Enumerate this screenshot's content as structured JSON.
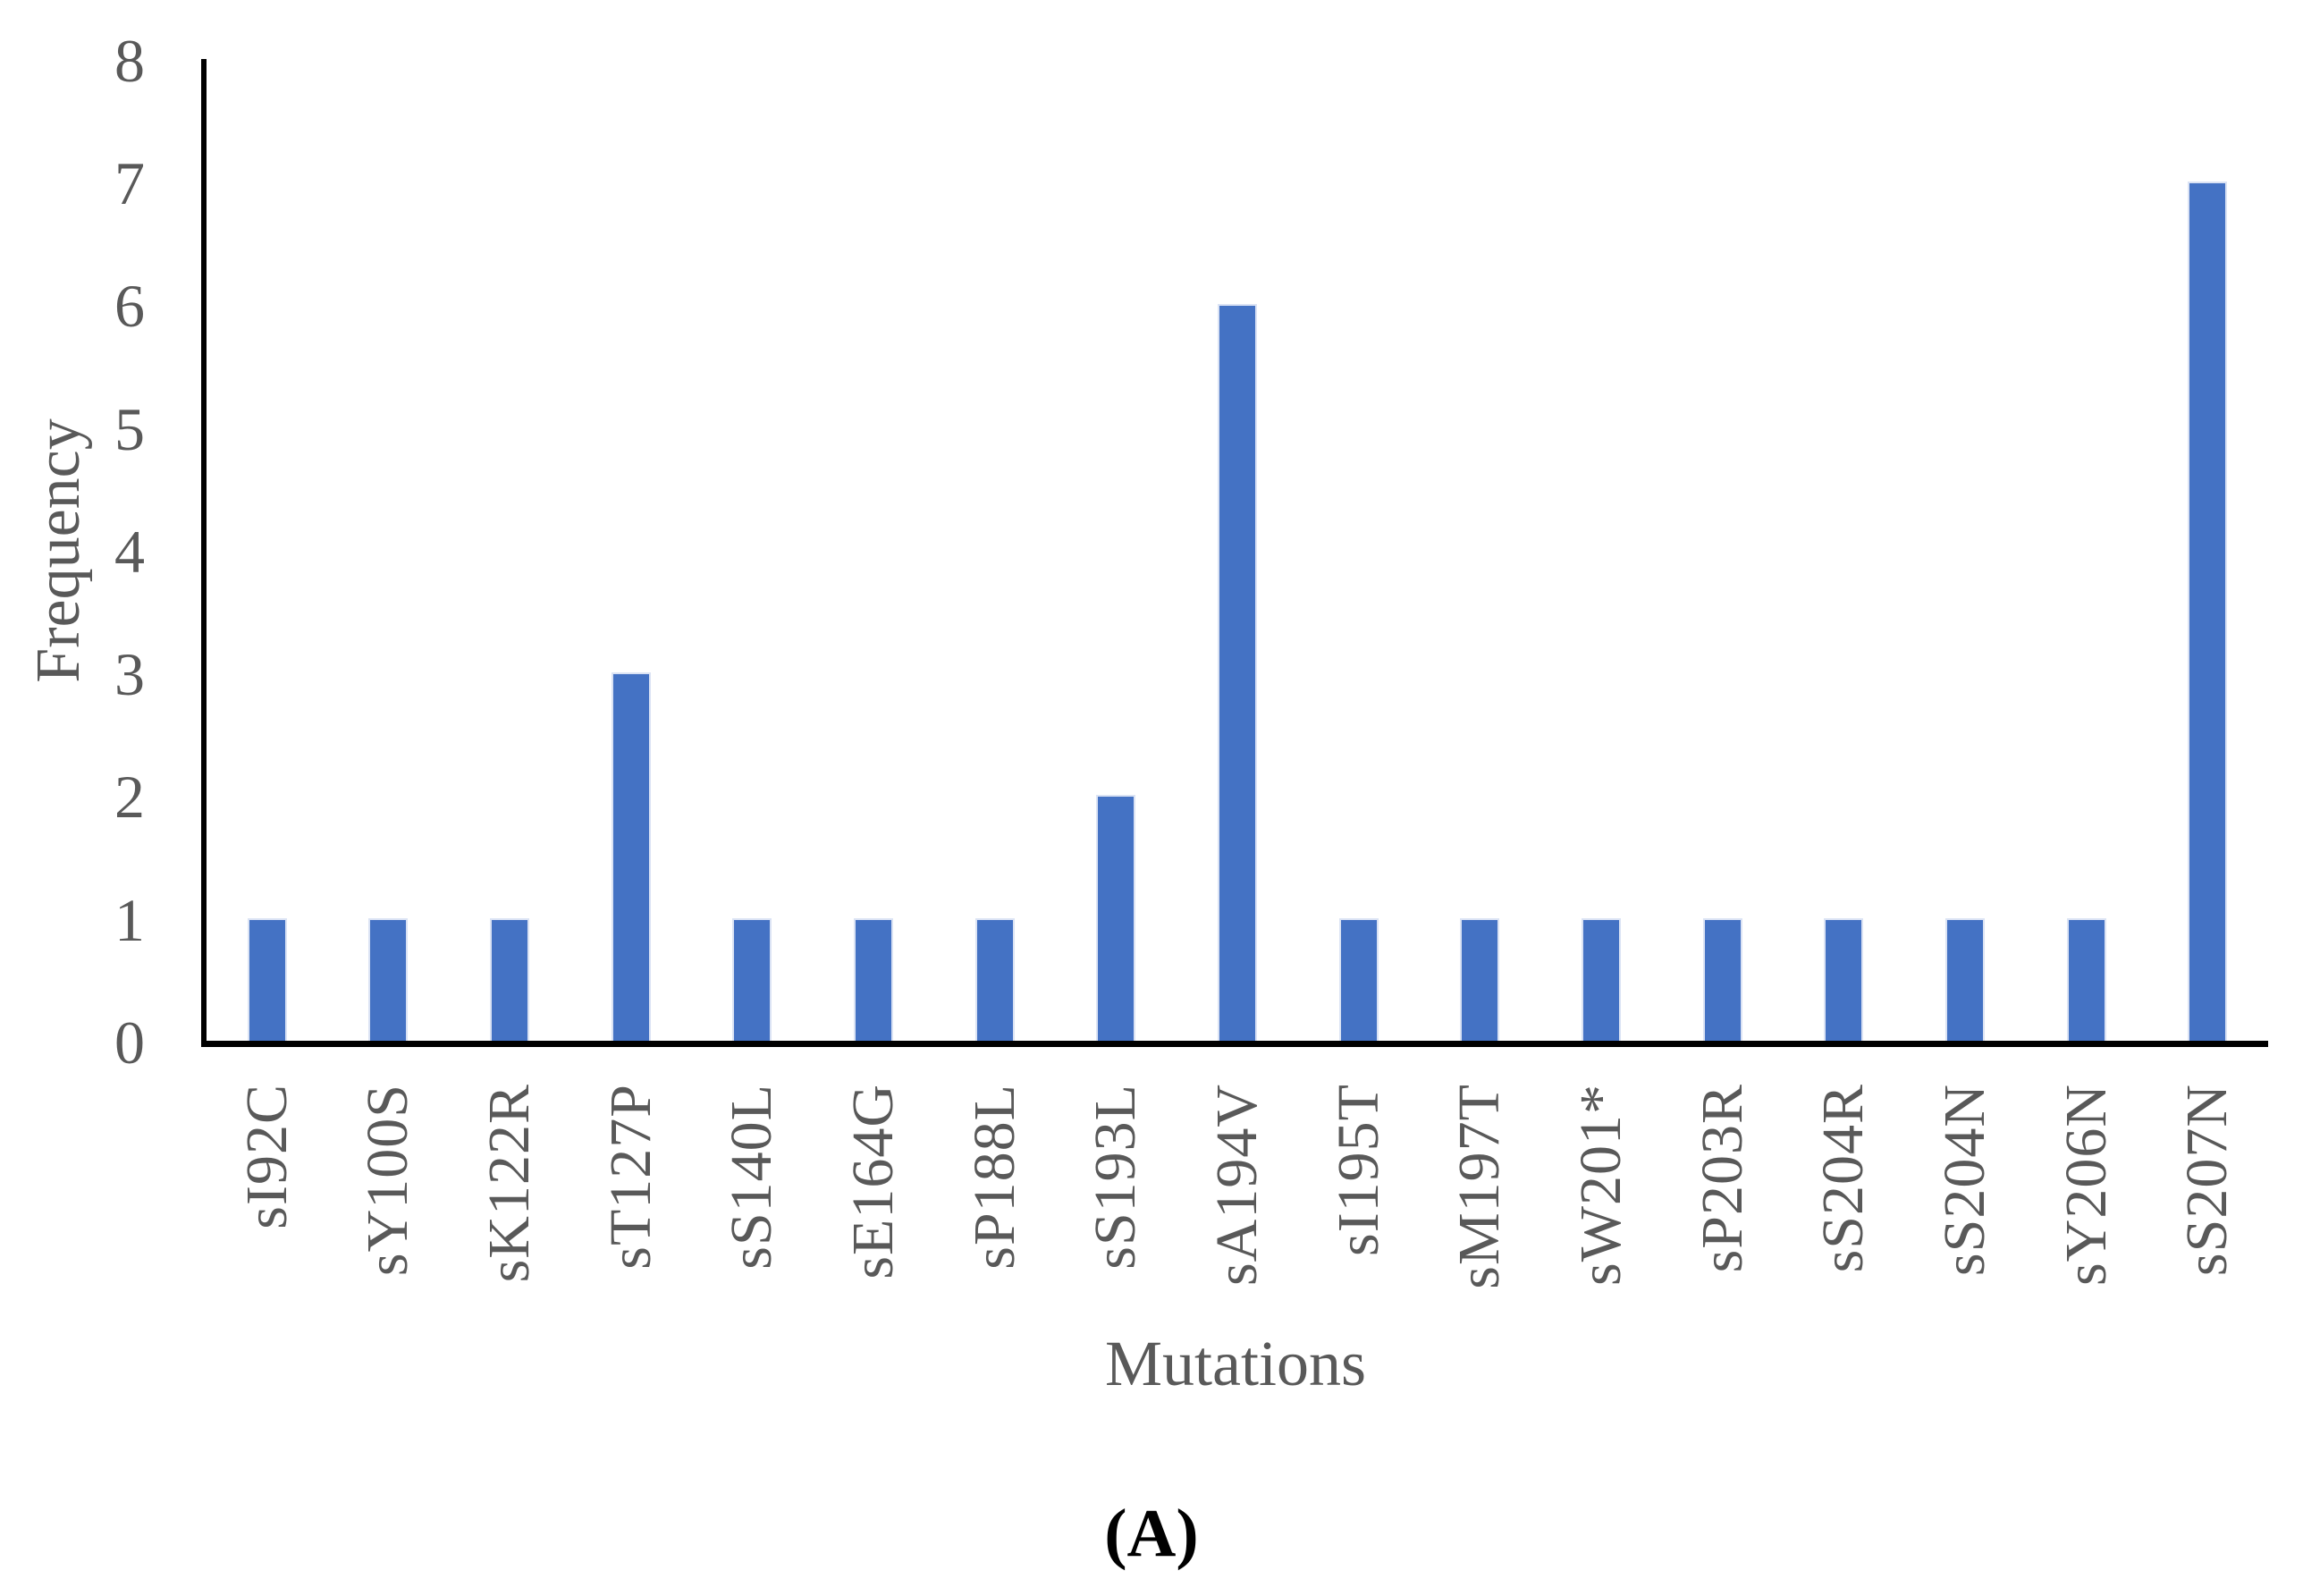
{
  "figure": {
    "caption": "(A)"
  },
  "chart_data": {
    "type": "bar",
    "title": "",
    "xlabel": "Mutations",
    "ylabel": "Frequency",
    "categories": [
      "sI92C",
      "sY100S",
      "sK122R",
      "sT127P",
      "sS140L",
      "sE164G",
      "sP188L",
      "sS193L",
      "sA194V",
      "sI195T",
      "sM197T",
      "sW201*",
      "sP203R",
      "sS204R",
      "sS204N",
      "sY206N",
      "sS207N"
    ],
    "values": [
      1,
      1,
      1,
      3,
      1,
      1,
      1,
      2,
      6,
      1,
      1,
      1,
      1,
      1,
      1,
      1,
      7
    ],
    "yticks": [
      0,
      1,
      2,
      3,
      4,
      5,
      6,
      7,
      8
    ],
    "ylim": [
      0,
      8
    ],
    "grid": false,
    "legend": false,
    "bar_color": "#4472C4",
    "bar_edge_color": "#dbe3f4",
    "axis_line_color": "#000000",
    "tick_label_color": "#595959",
    "axis_title_color": "#595959",
    "caption_color": "#000000"
  }
}
